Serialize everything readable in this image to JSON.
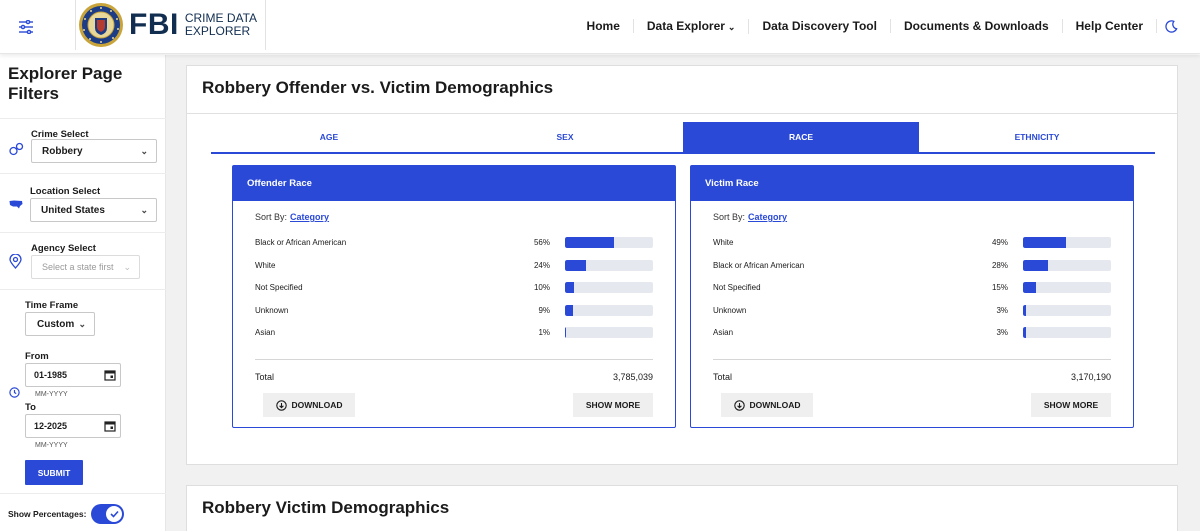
{
  "header": {
    "brand": "FBI",
    "brand_sub_1": "CRIME DATA",
    "brand_sub_2": "EXPLORER",
    "nav": [
      "Home",
      "Data Explorer",
      "Data Discovery Tool",
      "Documents & Downloads",
      "Help Center"
    ]
  },
  "sidebar": {
    "title_1": "Explorer Page",
    "title_2": "Filters",
    "crime_label": "Crime Select",
    "crime_value": "Robbery",
    "location_label": "Location Select",
    "location_value": "United States",
    "agency_label": "Agency Select",
    "agency_placeholder": "Select a state first",
    "timeframe_label": "Time Frame",
    "timeframe_value": "Custom",
    "from_label": "From",
    "from_value": "01-1985",
    "from_hint": "MM-YYYY",
    "to_label": "To",
    "to_value": "12-2025",
    "to_hint": "MM-YYYY",
    "submit_label": "SUBMIT",
    "show_pct_label": "Show Percentages:"
  },
  "main": {
    "card_title": "Robbery Offender vs. Victim Demographics",
    "tabs": [
      "AGE",
      "SEX",
      "RACE",
      "ETHNICITY"
    ],
    "active_tab": "RACE",
    "offender": {
      "title": "Offender Race",
      "sort_label": "Sort By:",
      "sort_value": "Category",
      "rows": [
        {
          "label": "Black or African American",
          "pct": "56%",
          "value": 56
        },
        {
          "label": "White",
          "pct": "24%",
          "value": 24
        },
        {
          "label": "Not Specified",
          "pct": "10%",
          "value": 10
        },
        {
          "label": "Unknown",
          "pct": "9%",
          "value": 9
        },
        {
          "label": "Asian",
          "pct": "1%",
          "value": 1
        }
      ],
      "total_label": "Total",
      "total_value": "3,785,039",
      "download_label": "DOWNLOAD",
      "more_label": "SHOW MORE"
    },
    "victim": {
      "title": "Victim Race",
      "sort_label": "Sort By:",
      "sort_value": "Category",
      "rows": [
        {
          "label": "White",
          "pct": "49%",
          "value": 49
        },
        {
          "label": "Black or African American",
          "pct": "28%",
          "value": 28
        },
        {
          "label": "Not Specified",
          "pct": "15%",
          "value": 15
        },
        {
          "label": "Unknown",
          "pct": "3%",
          "value": 3
        },
        {
          "label": "Asian",
          "pct": "3%",
          "value": 3
        }
      ],
      "total_label": "Total",
      "total_value": "3,170,190",
      "download_label": "DOWNLOAD",
      "more_label": "SHOW MORE"
    },
    "second_card_title": "Robbery Victim Demographics"
  },
  "colors": {
    "accent": "#2a49d7",
    "brand_navy": "#112e51",
    "background": "#f1f1f1"
  },
  "icons": [
    "filter-menu-icon",
    "fbi-seal-icon",
    "moon-icon",
    "handcuffs-icon",
    "us-map-icon",
    "location-pin-icon",
    "clock-icon",
    "calendar-icon",
    "download-icon",
    "check-icon"
  ]
}
